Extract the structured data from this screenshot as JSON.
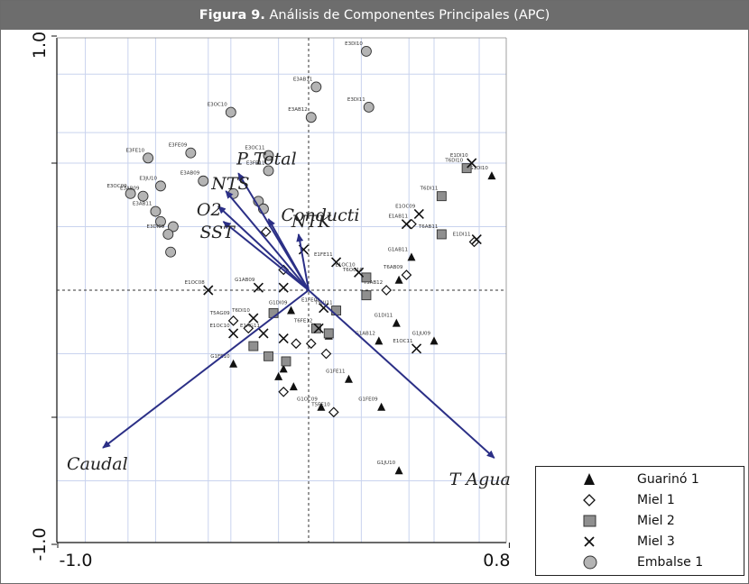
{
  "header": {
    "figure_label": "Figura 9.",
    "title_rest": " Análisis de Componentes Principales (APC)"
  },
  "legend": [
    {
      "symbol": "triangle",
      "label": "Guarinó 1"
    },
    {
      "symbol": "diamond",
      "label": "Miel 1"
    },
    {
      "symbol": "square",
      "label": "Miel 2"
    },
    {
      "symbol": "cross",
      "label": "Miel 3"
    },
    {
      "symbol": "circle",
      "label": "Embalse 1"
    }
  ],
  "chart_data": {
    "type": "scatter",
    "subtype": "pca-biplot",
    "title": "",
    "xlabel": "",
    "ylabel": "",
    "xlim": [
      -1.0,
      0.8
    ],
    "ylim": [
      -1.0,
      1.0
    ],
    "x_tick_labels": [
      "-1.0",
      "0.8"
    ],
    "y_tick_labels": [
      "1.0",
      "-1.0"
    ],
    "grid": true,
    "zero_lines": "dashed",
    "legend_position": "bottom-right",
    "colors": {
      "arrow": "#2b2f86",
      "point_fill_grey": "#9e9e9e",
      "grid": "#c9d3ee"
    },
    "vectors": [
      {
        "name": "P Total",
        "x": -0.28,
        "y": 0.46
      },
      {
        "name": "NTS",
        "x": -0.33,
        "y": 0.39
      },
      {
        "name": "Conducti",
        "x": -0.16,
        "y": 0.28
      },
      {
        "name": "O2",
        "x": -0.36,
        "y": 0.33
      },
      {
        "name": "NTK",
        "x": -0.04,
        "y": 0.22
      },
      {
        "name": "SST",
        "x": -0.34,
        "y": 0.27
      },
      {
        "name": "Caudal",
        "x": -0.82,
        "y": -0.62
      },
      {
        "name": "T Agua",
        "x": 0.74,
        "y": -0.66
      }
    ],
    "series": [
      {
        "name": "Guarinó 1",
        "marker": "triangle",
        "points": [
          {
            "x": 0.73,
            "y": 0.45,
            "label": "G1DI10"
          },
          {
            "x": 0.41,
            "y": 0.13,
            "label": "G1AB11"
          },
          {
            "x": 0.36,
            "y": 0.04,
            "label": ""
          },
          {
            "x": 0.35,
            "y": -0.13,
            "label": "G1DI11"
          },
          {
            "x": 0.28,
            "y": -0.2,
            "label": "G1AB12"
          },
          {
            "x": 0.5,
            "y": -0.2,
            "label": "G1JU09"
          },
          {
            "x": 0.16,
            "y": -0.35,
            "label": "G1FE11"
          },
          {
            "x": 0.29,
            "y": -0.46,
            "label": "G1FE09"
          },
          {
            "x": 0.05,
            "y": -0.46,
            "label": "G1OC09"
          },
          {
            "x": 0.36,
            "y": -0.71,
            "label": "G1JU10"
          },
          {
            "x": -0.07,
            "y": -0.08,
            "label": "G1DI09"
          },
          {
            "x": -0.3,
            "y": -0.29,
            "label": "G1FE10"
          },
          {
            "x": -0.06,
            "y": -0.38,
            "label": ""
          },
          {
            "x": -0.1,
            "y": -0.31,
            "label": ""
          },
          {
            "x": -0.12,
            "y": -0.34,
            "label": ""
          },
          {
            "x": 0.08,
            "y": -0.18,
            "label": ""
          }
        ]
      },
      {
        "name": "Miel 1",
        "marker": "diamond",
        "points": [
          {
            "x": 0.66,
            "y": 0.19,
            "label": "E1DI11"
          },
          {
            "x": 0.41,
            "y": 0.26,
            "label": "E1AB11"
          },
          {
            "x": 0.39,
            "y": 0.06,
            "label": "T6AB09"
          },
          {
            "x": 0.31,
            "y": 0.0,
            "label": "T5AB12"
          },
          {
            "x": -0.17,
            "y": 0.23,
            "label": ""
          },
          {
            "x": -0.1,
            "y": 0.08,
            "label": ""
          },
          {
            "x": -0.3,
            "y": -0.12,
            "label": "T5AG09"
          },
          {
            "x": -0.24,
            "y": -0.15,
            "label": ""
          },
          {
            "x": -0.05,
            "y": -0.21,
            "label": ""
          },
          {
            "x": -0.1,
            "y": -0.4,
            "label": ""
          },
          {
            "x": 0.1,
            "y": -0.48,
            "label": "T5FE10"
          },
          {
            "x": 0.01,
            "y": -0.21,
            "label": ""
          },
          {
            "x": 0.07,
            "y": -0.25,
            "label": ""
          }
        ]
      },
      {
        "name": "Miel 2",
        "marker": "square",
        "points": [
          {
            "x": 0.63,
            "y": 0.48,
            "label": "T6DI10"
          },
          {
            "x": 0.53,
            "y": 0.37,
            "label": "T6DI11"
          },
          {
            "x": 0.53,
            "y": 0.22,
            "label": "T6AB11"
          },
          {
            "x": 0.23,
            "y": 0.05,
            "label": "T6OC10"
          },
          {
            "x": 0.23,
            "y": -0.02,
            "label": ""
          },
          {
            "x": 0.11,
            "y": -0.08,
            "label": "T5JU11"
          },
          {
            "x": 0.03,
            "y": -0.15,
            "label": "T6FE12"
          },
          {
            "x": 0.08,
            "y": -0.17,
            "label": ""
          },
          {
            "x": -0.14,
            "y": -0.09,
            "label": ""
          },
          {
            "x": -0.22,
            "y": -0.22,
            "label": ""
          },
          {
            "x": -0.16,
            "y": -0.26,
            "label": ""
          },
          {
            "x": -0.09,
            "y": -0.28,
            "label": ""
          }
        ]
      },
      {
        "name": "Miel 3",
        "marker": "cross",
        "points": [
          {
            "x": 0.65,
            "y": 0.5,
            "label": "E1DI10"
          },
          {
            "x": 0.44,
            "y": 0.3,
            "label": "E1OC09"
          },
          {
            "x": 0.39,
            "y": 0.26,
            "label": ""
          },
          {
            "x": 0.67,
            "y": 0.2,
            "label": ""
          },
          {
            "x": 0.11,
            "y": 0.11,
            "label": "E1FE11"
          },
          {
            "x": 0.2,
            "y": 0.07,
            "label": "E1OC10"
          },
          {
            "x": -0.02,
            "y": 0.16,
            "label": ""
          },
          {
            "x": -0.4,
            "y": 0.0,
            "label": "E1OC08"
          },
          {
            "x": -0.2,
            "y": 0.01,
            "label": "G1AB09"
          },
          {
            "x": -0.1,
            "y": 0.01,
            "label": ""
          },
          {
            "x": 0.06,
            "y": -0.07,
            "label": "E1FE09"
          },
          {
            "x": -0.22,
            "y": -0.11,
            "label": "T6DI10"
          },
          {
            "x": -0.3,
            "y": -0.17,
            "label": "E1OC10"
          },
          {
            "x": -0.18,
            "y": -0.17,
            "label": "E1AG11"
          },
          {
            "x": -0.1,
            "y": -0.19,
            "label": ""
          },
          {
            "x": 0.04,
            "y": -0.15,
            "label": ""
          },
          {
            "x": 0.43,
            "y": -0.23,
            "label": "E1OC11"
          }
        ]
      },
      {
        "name": "Embalse 1",
        "marker": "circle",
        "points": [
          {
            "x": 0.23,
            "y": 0.94,
            "label": "E3DI10"
          },
          {
            "x": 0.03,
            "y": 0.8,
            "label": "E3AB11"
          },
          {
            "x": 0.24,
            "y": 0.72,
            "label": "E3DI11"
          },
          {
            "x": 0.01,
            "y": 0.68,
            "label": "E3AB12"
          },
          {
            "x": -0.31,
            "y": 0.7,
            "label": "E3OC10"
          },
          {
            "x": -0.16,
            "y": 0.53,
            "label": "E3OC11"
          },
          {
            "x": -0.64,
            "y": 0.52,
            "label": "E3FE10"
          },
          {
            "x": -0.47,
            "y": 0.54,
            "label": "E3FE09"
          },
          {
            "x": -0.16,
            "y": 0.47,
            "label": "E3FE11"
          },
          {
            "x": -0.42,
            "y": 0.43,
            "label": "E3AB09"
          },
          {
            "x": -0.3,
            "y": 0.38,
            "label": ""
          },
          {
            "x": -0.59,
            "y": 0.41,
            "label": "E3JU10"
          },
          {
            "x": -0.71,
            "y": 0.38,
            "label": "E3OC09"
          },
          {
            "x": -0.66,
            "y": 0.37,
            "label": "E3AB09"
          },
          {
            "x": -0.61,
            "y": 0.31,
            "label": "E3AB11"
          },
          {
            "x": -0.59,
            "y": 0.27,
            "label": ""
          },
          {
            "x": -0.54,
            "y": 0.25,
            "label": ""
          },
          {
            "x": -0.56,
            "y": 0.22,
            "label": "E3DI09"
          },
          {
            "x": -0.2,
            "y": 0.35,
            "label": ""
          },
          {
            "x": -0.18,
            "y": 0.32,
            "label": ""
          },
          {
            "x": -0.55,
            "y": 0.15,
            "label": ""
          }
        ]
      }
    ]
  }
}
